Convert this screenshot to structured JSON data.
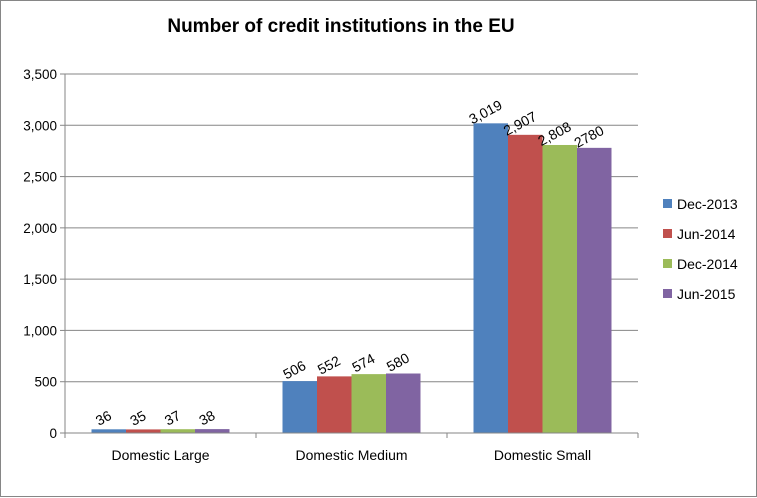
{
  "chart_data": {
    "type": "bar",
    "title": "Number of credit institutions in the EU",
    "xlabel": "",
    "ylabel": "",
    "ylim": [
      0,
      3500
    ],
    "ytick_step": 500,
    "ytick_labels": [
      "0",
      "500",
      "1,000",
      "1,500",
      "2,000",
      "2,500",
      "3,000",
      "3,500"
    ],
    "grid": true,
    "legend_position": "right",
    "categories": [
      "Domestic Large",
      "Domestic Medium",
      "Domestic Small"
    ],
    "series": [
      {
        "name": "Dec-2013",
        "color": "#4f81bd",
        "values": [
          36,
          506,
          3019
        ],
        "labels": [
          "36",
          "506",
          "3,019"
        ]
      },
      {
        "name": "Jun-2014",
        "color": "#c0504d",
        "values": [
          35,
          552,
          2907
        ],
        "labels": [
          "35",
          "552",
          "2,907"
        ]
      },
      {
        "name": "Dec-2014",
        "color": "#9bbb59",
        "values": [
          37,
          574,
          2808
        ],
        "labels": [
          "37",
          "574",
          "2,808"
        ]
      },
      {
        "name": "Jun-2015",
        "color": "#8064a2",
        "values": [
          38,
          580,
          2780
        ],
        "labels": [
          "38",
          "580",
          "2780"
        ]
      }
    ]
  }
}
